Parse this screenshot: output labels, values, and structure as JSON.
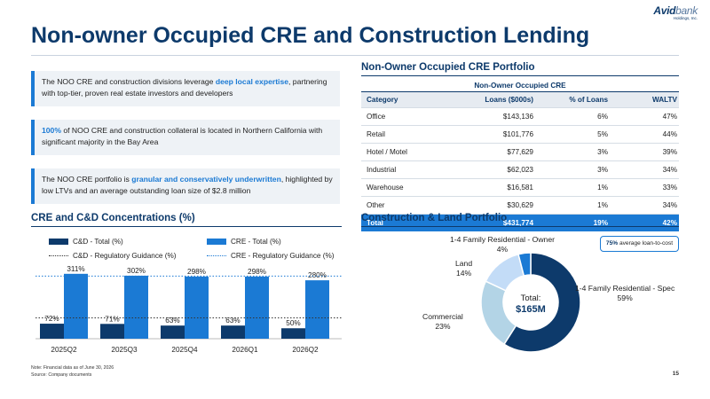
{
  "logo": {
    "brand_bold": "Avid",
    "brand_light": "bank",
    "sub": "Holdings, Inc."
  },
  "title": "Non-owner Occupied CRE and Construction Lending",
  "callouts": [
    {
      "pre": "The NOO CRE and construction divisions leverage ",
      "hl": "deep local expertise",
      "post": ", partnering with top-tier, proven real estate investors and developers"
    },
    {
      "pre": "",
      "hl": "100%",
      "post": " of NOO CRE and construction collateral is located in Northern California with significant majority in the Bay Area"
    },
    {
      "pre": "The NOO CRE portfolio is ",
      "hl": "granular and conservatively underwritten",
      "post": ", highlighted by low LTVs and an average outstanding loan size of $2.8 million"
    }
  ],
  "noo_section": {
    "title": "Non-Owner Occupied CRE Portfolio",
    "table": {
      "caption": "Non-Owner Occupied CRE",
      "headers": [
        "Category",
        "Loans ($000s)",
        "% of Loans",
        "WALTV"
      ],
      "rows": [
        [
          "Office",
          "$143,136",
          "6%",
          "47%"
        ],
        [
          "Retail",
          "$101,776",
          "5%",
          "44%"
        ],
        [
          "Hotel / Motel",
          "$77,629",
          "3%",
          "39%"
        ],
        [
          "Industrial",
          "$62,023",
          "3%",
          "34%"
        ],
        [
          "Warehouse",
          "$16,581",
          "1%",
          "33%"
        ],
        [
          "Other",
          "$30,629",
          "1%",
          "34%"
        ]
      ],
      "total": [
        "Total",
        "$431,774",
        "19%",
        "42%"
      ]
    }
  },
  "concentration_section": {
    "title": "CRE and C&D Concentrations (%)",
    "legend": [
      "C&D - Total (%)",
      "CRE - Total (%)",
      "C&D - Regulatory Guidance (%)",
      "CRE - Regulatory Guidance (%)"
    ]
  },
  "construction_section": {
    "title": "Construction & Land Portfolio",
    "badge_bold": "75%",
    "badge_rest": " average loan-to-cost",
    "center_label": "Total:",
    "center_value": "$165M"
  },
  "chart_data": [
    {
      "type": "bar",
      "categories": [
        "2025Q2",
        "2025Q3",
        "2025Q4",
        "2026Q1",
        "2026Q2"
      ],
      "series": [
        {
          "name": "C&D - Total (%)",
          "values": [
            72,
            71,
            63,
            63,
            50
          ],
          "labels": [
            "72%",
            "71%",
            "63%",
            "63%",
            "50%"
          ],
          "color": "#0d3a6b"
        },
        {
          "name": "CRE - Total (%)",
          "values": [
            311,
            302,
            298,
            298,
            280
          ],
          "labels": [
            "311%",
            "302%",
            "298%",
            "298%",
            "280%"
          ],
          "color": "#1b7ad4"
        }
      ],
      "reference_lines": [
        {
          "name": "C&D - Regulatory Guidance (%)",
          "value": 100
        },
        {
          "name": "CRE - Regulatory Guidance (%)",
          "value": 300
        }
      ],
      "ylim": [
        0,
        340
      ],
      "legend": "top"
    },
    {
      "type": "pie",
      "labels": [
        "1-4 Family Residential - Spec",
        "Commercial",
        "Land",
        "1-4 Family Residential - Owner"
      ],
      "values": [
        59,
        23,
        14,
        4
      ],
      "value_labels": [
        "59%",
        "23%",
        "14%",
        "4%"
      ],
      "colors": [
        "#0d3a6b",
        "#b3d4e6",
        "#c3dcf7",
        "#1b7ad4"
      ],
      "donut": true
    }
  ],
  "note": "Note: Financial data as of June 30, 2026",
  "source": "Source: Company documents",
  "page_number": "15"
}
